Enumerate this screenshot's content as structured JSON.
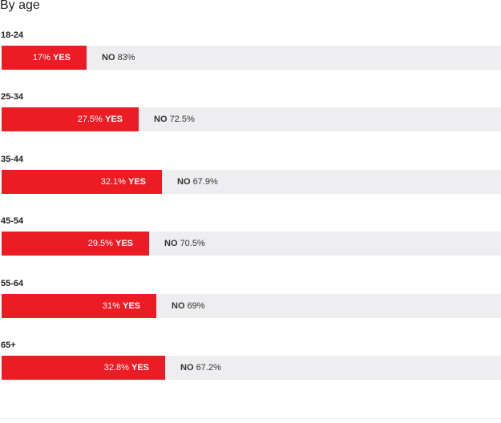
{
  "chart_data": {
    "type": "bar",
    "orientation": "horizontal",
    "stacked": true,
    "title": "By age",
    "categories": [
      "18-24",
      "25-34",
      "35-44",
      "45-54",
      "55-64",
      "65+"
    ],
    "series": [
      {
        "name": "YES",
        "values": [
          17,
          27.5,
          32.1,
          29.5,
          31,
          32.8
        ],
        "labels": [
          "17%",
          "27.5%",
          "32.1%",
          "29.5%",
          "31%",
          "32.8%"
        ],
        "color": "#ec1c24"
      },
      {
        "name": "NO",
        "values": [
          83,
          72.5,
          67.9,
          70.5,
          69,
          67.2
        ],
        "labels": [
          "83%",
          "72.5%",
          "67.9%",
          "70.5%",
          "69%",
          "67.2%"
        ],
        "color": "#eeeef0"
      }
    ],
    "xlim": [
      0,
      100
    ],
    "grid": false
  }
}
